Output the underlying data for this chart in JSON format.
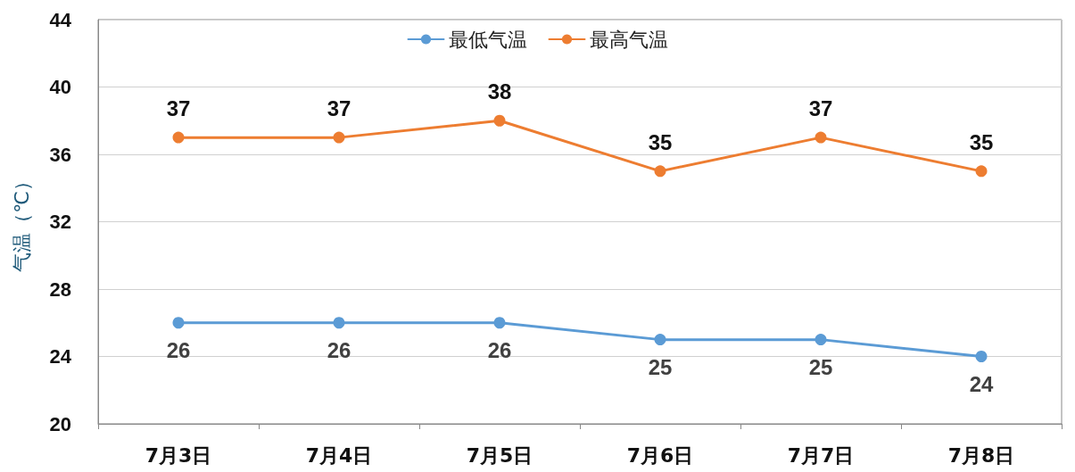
{
  "chart_data": {
    "type": "line",
    "ylabel": "气温（℃）",
    "categories": [
      "7月3日",
      "7月4日",
      "7月5日",
      "7月6日",
      "7月7日",
      "7月8日"
    ],
    "series": [
      {
        "name": "最低气温",
        "color": "#5b9bd5",
        "values": [
          26,
          26,
          26,
          25,
          25,
          24
        ]
      },
      {
        "name": "最高气温",
        "color": "#ed7d31",
        "values": [
          37,
          37,
          38,
          35,
          37,
          35
        ]
      }
    ],
    "ylim": [
      20,
      44
    ],
    "yticks": [
      20,
      24,
      28,
      32,
      36,
      40,
      44
    ],
    "grid": "y",
    "legend": "top",
    "marker": "circle",
    "line_style": "solid",
    "data_labels": true
  }
}
